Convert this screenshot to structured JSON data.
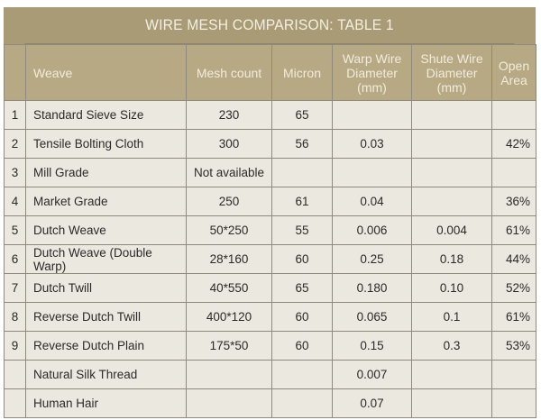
{
  "title": "WIRE MESH COMPARISON: TABLE 1",
  "headers": [
    "",
    "Weave",
    "Mesh count",
    "Micron",
    "Warp Wire Diameter (mm)",
    "Shute Wire Diameter (mm)",
    "Open Area"
  ],
  "rows": [
    [
      "1",
      "Standard Sieve Size",
      "230",
      "65",
      "",
      "",
      ""
    ],
    [
      "2",
      "Tensile Bolting Cloth",
      "300",
      "56",
      "0.03",
      "",
      "42%"
    ],
    [
      "3",
      "Mill Grade",
      "Not available",
      "",
      "",
      "",
      ""
    ],
    [
      "4",
      "Market Grade",
      "250",
      "61",
      "0.04",
      "",
      "36%"
    ],
    [
      "5",
      "Dutch Weave",
      "50*250",
      "55",
      "0.006",
      "0.004",
      "61%"
    ],
    [
      "6",
      "Dutch Weave (Double Warp)",
      "28*160",
      "60",
      "0.25",
      "0.18",
      "44%"
    ],
    [
      "7",
      "Dutch Twill",
      "40*550",
      "65",
      "0.180",
      "0.10",
      "52%"
    ],
    [
      "8",
      "Reverse Dutch Twill",
      "400*120",
      "60",
      "0.065",
      "0.1",
      "61%"
    ],
    [
      "9",
      "Reverse Dutch Plain",
      "175*50",
      "60",
      "0.15",
      "0.3",
      "53%"
    ],
    [
      "",
      "Natural Silk Thread",
      "",
      "",
      "0.007",
      "",
      ""
    ],
    [
      "",
      "Human Hair",
      "",
      "",
      "0.07",
      "",
      ""
    ]
  ],
  "colors": {
    "title_bg": "#a89b76",
    "header_bg": "#b6a984",
    "cell_bg": "#ebe8e0"
  }
}
